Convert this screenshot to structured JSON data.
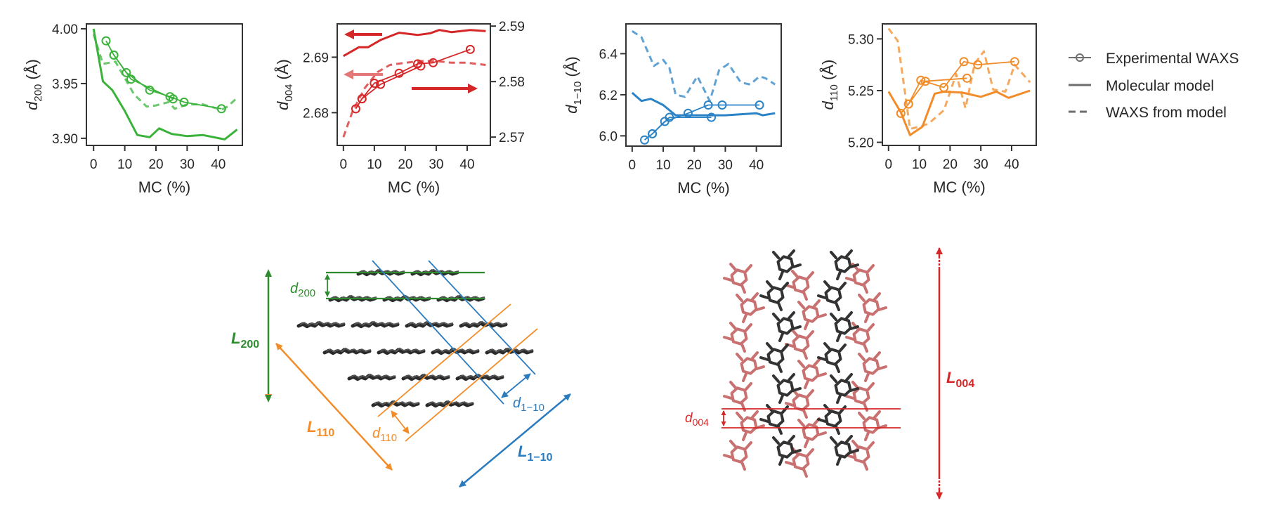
{
  "chart_data": [
    {
      "type": "line",
      "id": "d200",
      "ylabel_main": "d",
      "ylabel_sub": "200",
      "ylabel_unit": " (Å)",
      "xlabel": "MC (%)",
      "color": "#3bb33b",
      "xlim": [
        -2.3,
        47.7
      ],
      "ylim": [
        3.8935,
        4.0045
      ],
      "xticks": [
        0,
        10,
        20,
        30,
        40
      ],
      "yticks": [
        3.9,
        3.95,
        4.0
      ],
      "ytick_labels": [
        "3.90",
        "3.95",
        "4.00"
      ],
      "series": [
        {
          "name": "Experimental WAXS",
          "style": "marker",
          "x": [
            4,
            6.5,
            10.5,
            18,
            24.5,
            29,
            41
          ],
          "y": [
            3.989,
            3.976,
            3.96,
            3.944,
            3.938,
            3.933,
            3.927
          ]
        },
        {
          "name": "Experimental WAXS",
          "style": "marker",
          "x": [
            6.5,
            12,
            25.5
          ],
          "y": [
            3.976,
            3.954,
            3.936
          ]
        },
        {
          "name": "Molecular model",
          "style": "solid",
          "x": [
            0,
            3,
            6,
            10,
            14,
            18,
            21,
            25,
            30,
            35,
            42,
            46
          ],
          "y": [
            4.0,
            3.952,
            3.944,
            3.925,
            3.903,
            3.901,
            3.909,
            3.904,
            3.902,
            3.903,
            3.899,
            3.908
          ]
        },
        {
          "name": "WAXS from model",
          "style": "dashed",
          "x": [
            0,
            3,
            7,
            11,
            13,
            17,
            20,
            24,
            26,
            30,
            35,
            41,
            43,
            46
          ],
          "y": [
            3.995,
            3.968,
            3.97,
            3.95,
            3.94,
            3.929,
            3.93,
            3.933,
            3.927,
            3.931,
            3.931,
            3.926,
            3.929,
            3.937
          ]
        }
      ]
    },
    {
      "type": "line",
      "id": "d004",
      "ylabel_main": "d",
      "ylabel_sub": "004",
      "ylabel_unit": " (Å)",
      "xlabel": "MC (%)",
      "color": "#d62728",
      "xlim": [
        -2,
        47.5
      ],
      "ylim": [
        2.6741,
        2.696
      ],
      "y2lim": [
        2.5685,
        2.5904
      ],
      "xticks": [
        0,
        10,
        20,
        30,
        40
      ],
      "yticks": [
        2.68,
        2.69
      ],
      "ytick_labels": [
        "2.68",
        "2.69"
      ],
      "y2ticks": [
        2.57,
        2.58,
        2.59
      ],
      "y2tick_labels": [
        "2.57",
        "2.58",
        "2.59"
      ],
      "annotations": [
        "left-axis arrow (molecular model)",
        "left-axis arrow (experimental)",
        "right-axis arrow (WAXS from model)"
      ],
      "series": [
        {
          "name": "Experimental WAXS",
          "style": "marker",
          "axis": "left",
          "x": [
            4,
            6,
            10,
            18,
            24,
            29,
            41
          ],
          "y": [
            2.6807,
            2.6825,
            2.6853,
            2.6871,
            2.6888,
            2.689,
            2.6914
          ]
        },
        {
          "name": "Experimental WAXS",
          "style": "marker",
          "axis": "left",
          "x": [
            6,
            12,
            25
          ],
          "y": [
            2.6825,
            2.6851,
            2.6884
          ]
        },
        {
          "name": "Molecular model",
          "style": "solid",
          "axis": "right",
          "x": [
            0,
            5,
            8,
            12,
            18,
            24,
            28,
            31,
            35,
            41,
            46
          ],
          "y": [
            2.5846,
            2.5862,
            2.5862,
            2.5875,
            2.5888,
            2.5884,
            2.5887,
            2.5893,
            2.5889,
            2.5893,
            2.5891
          ]
        },
        {
          "name": "WAXS from model",
          "style": "dashed",
          "axis": "right",
          "x": [
            0,
            3,
            7,
            11,
            15,
            20,
            25,
            30,
            35,
            40,
            46
          ],
          "y": [
            2.57,
            2.5747,
            2.5789,
            2.5817,
            2.583,
            2.5834,
            2.5837,
            2.5837,
            2.5834,
            2.5834,
            2.583
          ]
        }
      ]
    },
    {
      "type": "line",
      "id": "d1-10",
      "ylabel_main": "d",
      "ylabel_sub": "1−10",
      "ylabel_unit": " (Å)",
      "xlabel": "MC (%)",
      "color": "#2b83c6",
      "xlim": [
        -2,
        48
      ],
      "ylim": [
        5.95,
        6.545
      ],
      "xticks": [
        0,
        10,
        20,
        30,
        40
      ],
      "yticks": [
        6.0,
        6.2,
        6.4
      ],
      "ytick_labels": [
        "6.0",
        "6.2",
        "6.4"
      ],
      "series": [
        {
          "name": "Experimental WAXS",
          "style": "marker",
          "x": [
            4,
            6.5,
            10.5,
            18,
            24.5,
            29,
            41
          ],
          "y": [
            5.98,
            6.01,
            6.07,
            6.11,
            6.15,
            6.15,
            6.15
          ]
        },
        {
          "name": "Experimental WAXS",
          "style": "marker",
          "x": [
            6.5,
            12,
            25.5
          ],
          "y": [
            6.01,
            6.09,
            6.09
          ]
        },
        {
          "name": "Molecular model",
          "style": "solid",
          "x": [
            0,
            3,
            6,
            10,
            14,
            18,
            25,
            30,
            40,
            42,
            46
          ],
          "y": [
            6.21,
            6.17,
            6.18,
            6.15,
            6.1,
            6.1,
            6.1,
            6.1,
            6.11,
            6.1,
            6.11
          ]
        },
        {
          "name": "WAXS from model",
          "style": "dashed",
          "x": [
            0,
            3,
            7,
            10,
            12,
            14,
            17,
            19,
            21,
            24,
            25,
            28,
            31,
            35,
            38,
            41,
            43,
            46
          ],
          "y": [
            6.51,
            6.48,
            6.34,
            6.37,
            6.33,
            6.2,
            6.19,
            6.24,
            6.29,
            6.2,
            6.17,
            6.32,
            6.35,
            6.26,
            6.25,
            6.29,
            6.28,
            6.25
          ]
        }
      ]
    },
    {
      "type": "line",
      "id": "d110",
      "ylabel_main": "d",
      "ylabel_sub": "110",
      "ylabel_unit": " (Å)",
      "xlabel": "MC (%)",
      "color": "#f28c28",
      "xlim": [
        -2,
        48
      ],
      "ylim": [
        5.197,
        5.3145
      ],
      "xticks": [
        0,
        10,
        20,
        30,
        40
      ],
      "yticks": [
        5.2,
        5.25,
        5.3
      ],
      "ytick_labels": [
        "5.20",
        "5.25",
        "5.30"
      ],
      "series": [
        {
          "name": "Experimental WAXS",
          "style": "marker",
          "x": [
            4,
            6.5,
            10.5,
            18,
            24.5,
            29,
            41
          ],
          "y": [
            5.228,
            5.237,
            5.26,
            5.253,
            5.278,
            5.275,
            5.278
          ]
        },
        {
          "name": "Experimental WAXS",
          "style": "marker",
          "x": [
            6.5,
            12,
            25.5
          ],
          "y": [
            5.237,
            5.259,
            5.262
          ]
        },
        {
          "name": "Molecular model",
          "style": "solid",
          "x": [
            0,
            4,
            7,
            11,
            15,
            18,
            24,
            30,
            35,
            39,
            46
          ],
          "y": [
            5.249,
            5.229,
            5.207,
            5.215,
            5.247,
            5.249,
            5.248,
            5.244,
            5.249,
            5.243,
            5.25
          ]
        },
        {
          "name": "WAXS from model",
          "style": "dashed",
          "x": [
            0,
            3,
            7,
            10,
            13,
            18,
            22,
            25,
            28,
            31,
            34,
            38,
            41,
            46
          ],
          "y": [
            5.31,
            5.298,
            5.213,
            5.215,
            5.218,
            5.231,
            5.266,
            5.233,
            5.276,
            5.288,
            5.251,
            5.249,
            5.275,
            5.258
          ]
        }
      ]
    }
  ],
  "legend": {
    "placement": "right",
    "items": [
      {
        "label": "Experimental WAXS",
        "style": "marker"
      },
      {
        "label": "Molecular model",
        "style": "solid"
      },
      {
        "label": "WAXS from model",
        "style": "dashed"
      }
    ],
    "color": "#6e6e6e"
  },
  "diagram_left": {
    "labels": {
      "L200": {
        "main": "L",
        "sub": "200"
      },
      "d200": {
        "main": "d",
        "sub": "200"
      },
      "L110": {
        "main": "L",
        "sub": "110"
      },
      "d110": {
        "main": "d",
        "sub": "110"
      },
      "L1-10": {
        "main": "L",
        "sub": "1−10"
      },
      "d1-10": {
        "main": "d",
        "sub": "1−10"
      }
    },
    "chain_rows": [
      2,
      3,
      4,
      4,
      3,
      2
    ],
    "colors": {
      "200": "#2e8b2e",
      "110": "#f28c28",
      "1-10": "#2b7bbf",
      "chain": "#2b2b2b"
    }
  },
  "diagram_right": {
    "labels": {
      "L004": {
        "main": "L",
        "sub": "004"
      },
      "d004": {
        "main": "d",
        "sub": "004"
      }
    },
    "colors": {
      "004": "#d62728",
      "chain_front": "#333333",
      "chain_back": "#c97070"
    }
  }
}
